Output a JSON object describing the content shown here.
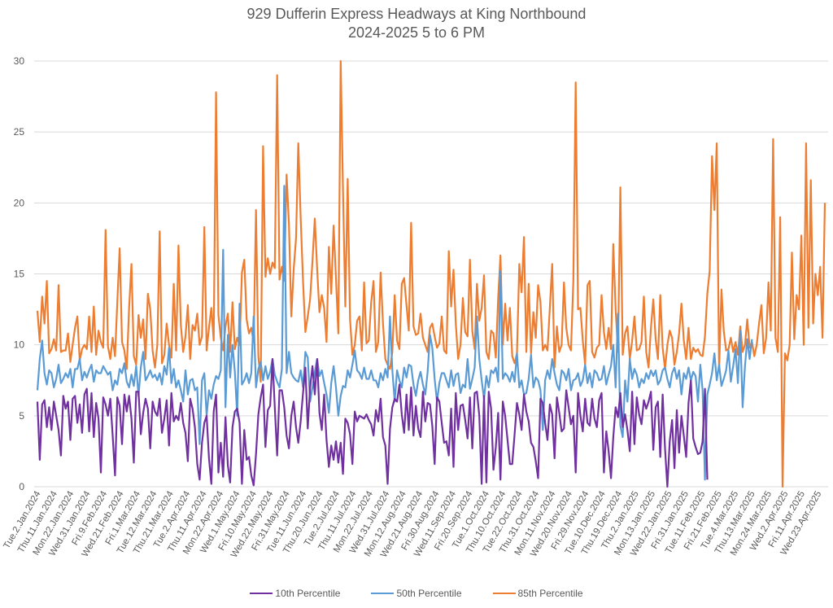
{
  "chart_data": {
    "type": "line",
    "title": "929 Dufferin Express Headways at King Northbound",
    "subtitle": "2024-2025 5 to 6 PM",
    "xlabel": "",
    "ylabel": "",
    "ylim": [
      0,
      30
    ],
    "yticks": [
      0,
      5,
      10,
      15,
      20,
      25,
      30
    ],
    "grid": true,
    "legend_position": "bottom",
    "colors": {
      "p10": "#7030A0",
      "p50": "#5B9BD5",
      "p85": "#ED7D31"
    },
    "x_tick_labels": [
      "Tue.2.Jan.2024",
      "Thu.11.Jan.2024",
      "Mon.22.Jan.2024",
      "Wed.31.Jan.2024",
      "Fri.9.Feb.2024",
      "Wed.21.Feb.2024",
      "Fri.1.Mar.2024",
      "Tue.12.Mar.2024",
      "Thu.21.Mar.2024",
      "Tue.2.Apr.2024",
      "Thu.11.Apr.2024",
      "Mon.22.Apr.2024",
      "Wed.1.May.2024",
      "Fri.10.May.2024",
      "Wed.22.May.2024",
      "Fri.31.May.2024",
      "Tue.11.Jun.2024",
      "Thu.20.Jun.2024",
      "Tue.2.Jul.2024",
      "Thu.11.Jul.2024",
      "Mon.22.Jul.2024",
      "Wed.31.Jul.2024",
      "Mon.12.Aug.2024",
      "Wed.21.Aug.2024",
      "Fri.30.Aug.2024",
      "Wed.11.Sep.2024",
      "Fri.20.Sep.2024",
      "Tue.1.Oct.2024",
      "Thu.10.Oct.2024",
      "Tue.22.Oct.2024",
      "Thu.31.Oct.2024",
      "Mon.11.Nov.2024",
      "Wed.20.Nov.2024",
      "Fri.29.Nov.2024",
      "Tue.10.Dec.2024",
      "Thu.19.Dec.2024",
      "Thu.2.Jan.2025",
      "Mon.13.Jan.2025",
      "Wed.22.Jan.2025",
      "Fri.31.Jan.2025",
      "Tue.11.Feb.2025",
      "Fri.21.Feb.2025",
      "Tue.4.Mar.2025",
      "Thu.13.Mar.2025",
      "Mon.24.Mar.2025",
      "Wed.2.Apr.2025",
      "Fri.11.Apr.2025",
      "Wed.23.Apr.2025"
    ],
    "points_per_tick": 7,
    "series": [
      {
        "name": "10th Percentile",
        "key": "p10",
        "values": [
          6.0,
          1.9,
          5.8,
          6.1,
          4.2,
          5.6,
          4.0,
          6.0,
          5.0,
          4.0,
          2.2,
          6.4,
          5.5,
          6.0,
          3.3,
          6.2,
          6.4,
          4.5,
          5.8,
          3.8,
          6.5,
          6.9,
          3.9,
          6.6,
          3.5,
          5.9,
          4.8,
          1.0,
          6.3,
          5.8,
          5.0,
          6.2,
          3.6,
          0.8,
          6.3,
          5.7,
          3.0,
          6.5,
          5.3,
          6.4,
          4.8,
          1.7,
          6.7,
          6.7,
          3.7,
          5.2,
          6.2,
          5.5,
          2.7,
          6.0,
          5.3,
          5.0,
          6.2,
          3.8,
          4.8,
          6.1,
          2.9,
          6.6,
          4.6,
          5.0,
          4.7,
          5.9,
          4.5,
          3.8,
          1.8,
          6.2,
          5.5,
          4.2,
          1.6,
          0.5,
          3.1,
          4.5,
          5.0,
          2.0,
          0.2,
          5.3,
          6.5,
          1.0,
          3.1,
          0.7,
          4.9,
          1.5,
          0.3,
          4.2,
          5.3,
          5.5,
          4.5,
          0.2,
          4.0,
          1.9,
          2.1,
          0.8,
          0.1,
          2.3,
          5.1,
          6.3,
          7.2,
          2.8,
          5.4,
          5.7,
          9.0,
          5.6,
          2.2,
          6.8,
          6.8,
          5.6,
          3.6,
          2.7,
          5.0,
          6.0,
          4.2,
          3.1,
          4.6,
          6.6,
          8.4,
          4.1,
          7.0,
          8.5,
          6.5,
          9.0,
          5.2,
          4.0,
          6.5,
          3.3,
          1.4,
          2.9,
          1.9,
          3.2,
          1.7,
          3.1,
          0.9,
          4.8,
          4.5,
          3.7,
          1.6,
          5.3,
          4.6,
          5.0,
          4.9,
          4.8,
          5.1,
          4.7,
          4.4,
          3.6,
          5.4,
          4.6,
          6.2,
          3.5,
          2.9,
          0.2,
          4.1,
          5.6,
          6.2,
          6.0,
          7.2,
          5.1,
          3.8,
          6.5,
          4.0,
          7.0,
          3.6,
          5.7,
          4.1,
          3.5,
          6.7,
          4.6,
          5.9,
          5.8,
          4.3,
          1.6,
          6.3,
          6.0,
          4.5,
          3.1,
          3.2,
          2.2,
          5.5,
          1.4,
          6.6,
          4.0,
          5.7,
          5.8,
          4.7,
          3.4,
          6.3,
          2.7,
          6.6,
          6.7,
          5.0,
          0.2,
          6.4,
          0.3,
          6.7,
          5.5,
          1.2,
          2.8,
          5.2,
          0.5,
          6.0,
          5.0,
          3.3,
          1.6,
          1.6,
          3.7,
          5.9,
          5.1,
          4.0,
          6.5,
          5.3,
          4.6,
          3.1,
          2.8,
          1.8,
          0.6,
          6.2,
          5.9,
          4.5,
          3.3,
          5.8,
          5.1,
          2.0,
          6.3,
          5.2,
          3.9,
          4.1,
          6.8,
          5.6,
          4.4,
          5.0,
          1.0,
          6.6,
          5.0,
          3.9,
          6.2,
          4.5,
          4.3,
          6.2,
          4.8,
          4.2,
          6.1,
          6.6,
          1.0,
          3.9,
          2.5,
          0.6,
          3.5,
          5.6,
          4.9,
          6.6,
          4.2,
          5.1,
          4.0,
          2.5,
          6.7,
          3.0,
          6.3,
          5.1,
          4.4,
          6.1,
          5.5,
          6.0,
          6.7,
          2.6,
          5.6,
          6.0,
          2.1,
          6.5,
          2.7,
          0.0,
          3.2,
          4.7,
          1.3,
          5.4,
          2.4,
          5.0,
          3.6,
          2.1,
          5.9,
          7.5,
          3.4,
          2.8,
          2.3,
          2.4,
          3.2,
          6.9,
          0.5
        ]
      },
      {
        "name": "50th Percentile",
        "key": "p50",
        "values": [
          6.8,
          9.0,
          10.3,
          8.0,
          7.2,
          8.2,
          8.0,
          7.0,
          7.6,
          8.6,
          7.3,
          7.6,
          8.0,
          7.7,
          8.3,
          7.0,
          8.3,
          8.3,
          9.0,
          7.5,
          8.1,
          7.7,
          8.2,
          8.6,
          7.4,
          8.2,
          8.0,
          8.0,
          8.5,
          8.2,
          7.9,
          8.1,
          6.8,
          7.5,
          7.2,
          8.3,
          8.0,
          8.7,
          7.4,
          7.0,
          7.9,
          7.1,
          8.5,
          6.4,
          8.4,
          9.5,
          7.5,
          7.8,
          8.2,
          7.7,
          7.9,
          7.5,
          8.0,
          7.2,
          8.5,
          7.9,
          9.8,
          7.3,
          8.3,
          7.0,
          7.5,
          6.8,
          6.0,
          8.2,
          6.5,
          7.5,
          7.6,
          6.8,
          7.0,
          3.0,
          7.5,
          8.0,
          5.0,
          6.8,
          6.2,
          7.2,
          7.8,
          7.6,
          8.2,
          16.7,
          5.6,
          10.7,
          7.7,
          10.0,
          8.1,
          5.0,
          12.9,
          7.2,
          7.5,
          8.0,
          7.3,
          8.0,
          12.0,
          7.0,
          8.3,
          8.8,
          7.5,
          8.5,
          7.6,
          8.1,
          9.0,
          7.9,
          7.4,
          7.0,
          8.3,
          21.2,
          8.0,
          9.5,
          8.0,
          7.7,
          7.5,
          7.4,
          8.2,
          7.0,
          9.5,
          9.1,
          6.0,
          7.0,
          8.1,
          9.0,
          7.8,
          8.2,
          7.3,
          6.5,
          5.2,
          7.3,
          8.5,
          7.0,
          5.0,
          6.4,
          7.1,
          7.0,
          8.2,
          7.7,
          8.6,
          9.6,
          8.2,
          8.0,
          7.6,
          8.4,
          7.6,
          7.6,
          8.2,
          7.5,
          7.5,
          7.0,
          8.0,
          7.5,
          8.3,
          7.7,
          12.0,
          8.2,
          6.0,
          8.2,
          7.5,
          7.0,
          8.4,
          7.7,
          8.6,
          8.5,
          7.2,
          6.4,
          7.5,
          8.1,
          7.2,
          6.5,
          8.1,
          10.7,
          9.8,
          7.6,
          6.0,
          7.3,
          8.0,
          8.0,
          7.5,
          7.0,
          8.2,
          7.1,
          7.9,
          8.0,
          6.6,
          7.2,
          7.0,
          9.0,
          6.9,
          7.6,
          8.4,
          12.0,
          9.0,
          7.5,
          6.2,
          7.8,
          7.0,
          8.2,
          8.0,
          8.4,
          7.4,
          15.2,
          7.6,
          8.0,
          7.8,
          7.4,
          8.1,
          7.4,
          9.4,
          7.0,
          7.5,
          6.5,
          6.6,
          7.6,
          9.3,
          7.0,
          7.7,
          7.5,
          6.8,
          4.0,
          7.5,
          8.2,
          7.6,
          9.0,
          8.0,
          7.2,
          6.8,
          8.2,
          8.0,
          7.5,
          8.3,
          6.8,
          7.5,
          7.6,
          8.0,
          7.1,
          7.5,
          8.6,
          7.3,
          8.0,
          7.0,
          8.2,
          8.0,
          7.5,
          7.6,
          8.5,
          7.2,
          7.9,
          8.5,
          10.0,
          7.0,
          12.2,
          4.3,
          3.5,
          7.5,
          6.0,
          9.0,
          7.6,
          8.3,
          7.9,
          7.0,
          7.6,
          7.3,
          8.0,
          7.6,
          8.2,
          7.8,
          8.2,
          7.2,
          7.5,
          8.2,
          8.4,
          7.6,
          7.0,
          8.0,
          8.4,
          7.6,
          8.2,
          6.5,
          8.0,
          7.6,
          8.4,
          7.5,
          8.1,
          7.8,
          6.0,
          8.6,
          6.8,
          0.5,
          6.5,
          7.2,
          8.0,
          9.4,
          7.5,
          8.6,
          7.1,
          7.6,
          8.2,
          9.6,
          7.4,
          8.5,
          9.7,
          7.3,
          11.0,
          5.6,
          8.5,
          10.4,
          9.0,
          10.4
        ]
      },
      {
        "name": "85th Percentile",
        "key": "p85",
        "values": [
          12.4,
          10.2,
          13.4,
          11.5,
          14.5,
          9.4,
          9.7,
          10.4,
          9.6,
          14.2,
          9.5,
          9.6,
          9.6,
          10.8,
          8.8,
          10.0,
          11.2,
          12.0,
          8.9,
          9.7,
          10.0,
          9.7,
          12.0,
          9.5,
          12.7,
          9.3,
          11.0,
          10.2,
          9.8,
          18.1,
          9.9,
          9.0,
          10.5,
          9.2,
          13.0,
          16.8,
          10.2,
          9.6,
          8.3,
          12.6,
          15.7,
          9.2,
          8.6,
          12.1,
          10.5,
          11.8,
          9.0,
          13.6,
          12.5,
          9.6,
          8.4,
          10.0,
          18.0,
          8.7,
          9.3,
          11.5,
          10.0,
          9.1,
          14.3,
          9.6,
          17.0,
          11.4,
          9.5,
          10.6,
          12.8,
          9.0,
          11.4,
          11.0,
          12.2,
          10.0,
          10.6,
          18.3,
          9.6,
          11.2,
          12.6,
          10.3,
          27.8,
          12.1,
          10.5,
          9.6,
          11.3,
          12.2,
          9.5,
          13.0,
          9.7,
          10.5,
          10.0,
          15.1,
          16.0,
          11.8,
          10.8,
          11.2,
          10.2,
          19.5,
          9.2,
          7.4,
          24.0,
          14.8,
          16.1,
          15.0,
          15.8,
          15.4,
          29.0,
          14.6,
          15.5,
          14.5,
          22.0,
          18.5,
          12.0,
          15.3,
          17.5,
          24.2,
          19.0,
          14.5,
          10.9,
          12.0,
          13.2,
          15.9,
          18.9,
          15.3,
          12.3,
          13.5,
          12.6,
          10.2,
          16.9,
          13.6,
          18.4,
          14.7,
          10.8,
          30.0,
          21.0,
          12.7,
          21.7,
          11.8,
          9.3,
          10.0,
          11.7,
          12.0,
          9.6,
          14.4,
          10.1,
          10.3,
          13.0,
          14.5,
          9.5,
          10.2,
          15.1,
          11.5,
          9.0,
          8.6,
          8.3,
          9.5,
          13.5,
          10.3,
          9.7,
          14.3,
          14.7,
          12.8,
          11.0,
          18.6,
          11.3,
          10.7,
          10.8,
          12.2,
          10.5,
          10.0,
          9.5,
          11.2,
          11.5,
          10.6,
          9.8,
          10.1,
          12.0,
          9.6,
          9.4,
          16.6,
          12.7,
          15.3,
          11.5,
          9.0,
          10.0,
          13.3,
          10.9,
          10.6,
          16.0,
          11.0,
          9.7,
          14.3,
          11.7,
          12.6,
          14.9,
          9.5,
          9.0,
          11.0,
          10.8,
          9.1,
          13.3,
          16.3,
          10.0,
          12.9,
          10.3,
          12.6,
          9.2,
          8.7,
          9.4,
          15.7,
          13.7,
          17.6,
          9.5,
          14.3,
          9.4,
          12.3,
          10.5,
          14.2,
          13.0,
          9.6,
          10.0,
          9.6,
          12.6,
          15.7,
          8.4,
          11.3,
          9.5,
          10.0,
          14.4,
          11.2,
          10.0,
          9.6,
          14.5,
          28.5,
          12.5,
          12.6,
          10.3,
          8.6,
          14.2,
          14.5,
          9.5,
          9.1,
          9.8,
          10.0,
          13.5,
          10.9,
          9.7,
          11.2,
          9.7,
          17.1,
          12.5,
          9.5,
          21.1,
          9.3,
          10.8,
          11.3,
          9.0,
          10.3,
          12.0,
          9.6,
          9.7,
          10.2,
          13.4,
          9.5,
          8.4,
          11.2,
          13.2,
          10.4,
          9.0,
          13.5,
          9.8,
          8.3,
          10.0,
          11.0,
          10.5,
          8.6,
          9.5,
          10.8,
          12.9,
          10.3,
          9.0,
          11.2,
          9.0,
          9.8,
          9.5,
          9.7,
          9.3,
          9.2,
          10.6,
          13.6,
          15.2,
          23.3,
          19.5,
          24.2,
          8.2,
          13.9,
          11.0,
          9.6,
          9.7,
          10.5,
          9.5,
          10.2,
          9.3,
          11.3,
          9.5,
          10.0,
          11.8,
          9.8,
          10.2,
          9.2,
          10.0,
          11.5,
          12.8,
          9.4,
          10.5,
          14.4,
          11.0,
          24.5,
          10.5,
          9.5,
          19.0,
          0.0,
          9.4,
          8.9,
          10.0,
          16.5,
          10.4,
          13.5,
          12.5,
          17.7,
          10.0,
          24.2,
          11.2,
          21.6,
          11.5,
          15.0,
          13.5,
          15.5,
          10.5,
          20.0
        ]
      }
    ]
  },
  "legend": {
    "items": [
      {
        "label": "10th Percentile",
        "key": "p10"
      },
      {
        "label": "50th Percentile",
        "key": "p50"
      },
      {
        "label": "85th Percentile",
        "key": "p85"
      }
    ]
  }
}
